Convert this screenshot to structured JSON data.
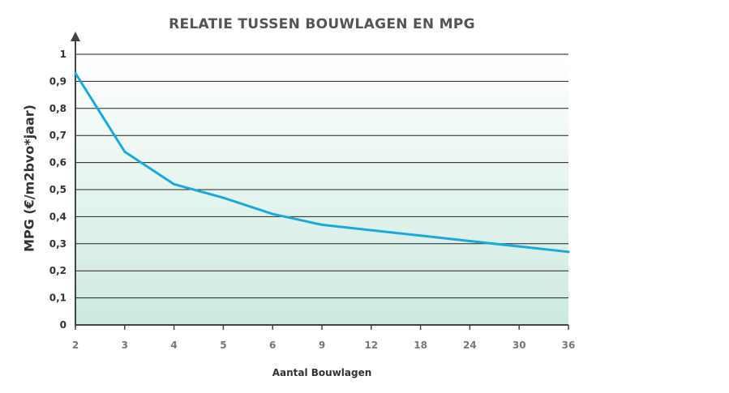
{
  "chart_data": {
    "type": "line",
    "title": "RELATIE TUSSEN BOUWLAGEN EN MPG",
    "xlabel": "Aantal Bouwlagen",
    "ylabel": "MPG (€/m2bvo*jaar)",
    "categories": [
      "2",
      "3",
      "4",
      "5",
      "6",
      "9",
      "12",
      "18",
      "24",
      "30",
      "36"
    ],
    "yticks": [
      "0",
      "0,1",
      "0,2",
      "0,3",
      "0,4",
      "0,5",
      "0,6",
      "0,7",
      "0,8",
      "0,9",
      "1"
    ],
    "ylim": [
      0,
      1
    ],
    "grid": true,
    "series": [
      {
        "values": [
          0.93,
          0.64,
          0.52,
          0.47,
          0.41,
          0.37,
          0.35,
          0.33,
          0.31,
          0.29,
          0.27
        ]
      }
    ],
    "colors": {
      "line": "#1aa9dc",
      "grid": "#222222",
      "axis": "#444444",
      "fill_top": "#ffffff",
      "fill_bottom": "#cce9de"
    }
  }
}
